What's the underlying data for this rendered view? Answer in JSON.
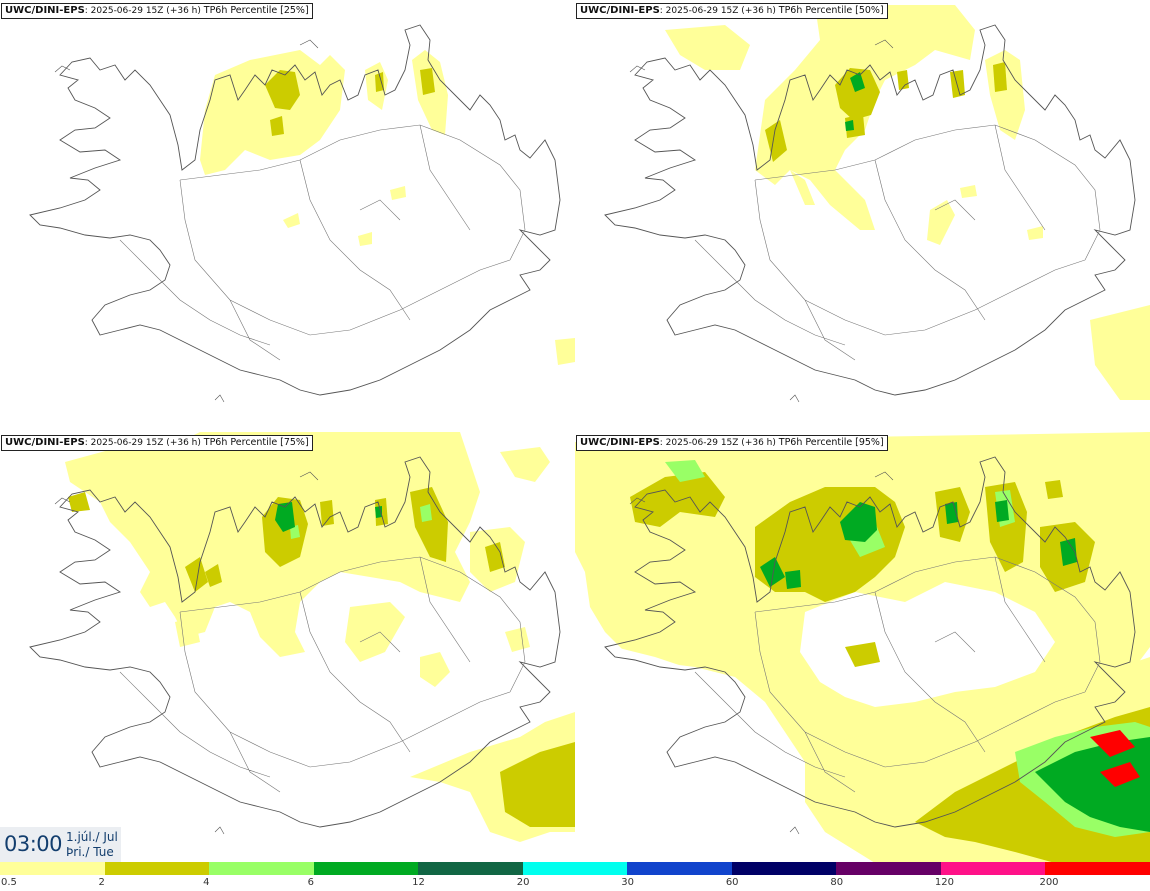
{
  "panels": [
    {
      "model": "UWC/DINI-EPS",
      "run": ": 2025-06-29 15Z (+36 h)",
      "product": "TP6h Percentile",
      "percentile": "[25%]"
    },
    {
      "model": "UWC/DINI-EPS",
      "run": ": 2025-06-29 15Z (+36 h)",
      "product": "TP6h Percentile",
      "percentile": "[50%]"
    },
    {
      "model": "UWC/DINI-EPS",
      "run": ": 2025-06-29 15Z (+36 h)",
      "product": "TP6h Percentile",
      "percentile": "[75%]"
    },
    {
      "model": "UWC/DINI-EPS",
      "run": ": 2025-06-29 15Z (+36 h)",
      "product": "TP6h Percentile",
      "percentile": "[95%]"
    }
  ],
  "valid_time": {
    "hour": "03:00",
    "date": "1.júl./ Jul",
    "weekday": "Þri./ Tue"
  },
  "legend": {
    "ticks": [
      "0.5",
      "2",
      "4",
      "6",
      "12",
      "20",
      "30",
      "60",
      "80",
      "120",
      "200"
    ],
    "colors": [
      "#ffff99",
      "#cccc00",
      "#99ff66",
      "#00aa22",
      "#116644",
      "#00ffee",
      "#1144cc",
      "#000066",
      "#660066",
      "#ff1188",
      "#ff0000"
    ]
  },
  "colors": {
    "border": "#666666",
    "light": "#ffff99",
    "mid": "#cccc00",
    "lgreen": "#99ff66",
    "green": "#00aa22",
    "dgreen": "#116644",
    "red": "#ff0000",
    "pink": "#ff1188"
  }
}
